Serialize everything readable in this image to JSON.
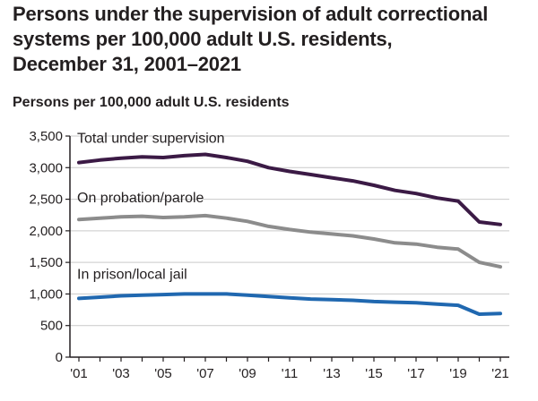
{
  "chart_data": {
    "type": "line",
    "title_lines": [
      "Persons under the supervision of adult correctional",
      "systems per 100,000 adult U.S. residents,",
      "December 31, 2001–2021"
    ],
    "ylabel": "Persons per 100,000 adult U.S. residents",
    "xlabel": "",
    "x": [
      2001,
      2002,
      2003,
      2004,
      2005,
      2006,
      2007,
      2008,
      2009,
      2010,
      2011,
      2012,
      2013,
      2014,
      2015,
      2016,
      2017,
      2018,
      2019,
      2020,
      2021
    ],
    "xtick_values": [
      2001,
      2003,
      2005,
      2007,
      2009,
      2011,
      2013,
      2015,
      2017,
      2019,
      2021
    ],
    "xtick_labels": [
      "'01",
      "'03",
      "'05",
      "'07",
      "'09",
      "'11",
      "'13",
      "'15",
      "'17",
      "'19",
      "'21"
    ],
    "ylim": [
      0,
      3500
    ],
    "yticks": [
      0,
      500,
      1000,
      1500,
      2000,
      2500,
      3000,
      3500
    ],
    "ytick_labels": [
      "0",
      "500",
      "1,000",
      "1,500",
      "2,000",
      "2,500",
      "3,000",
      "3,500"
    ],
    "grid": "horizontal",
    "series": [
      {
        "name": "Total under supervision",
        "color": "#3b1a45",
        "values": [
          3080,
          3120,
          3150,
          3170,
          3160,
          3190,
          3210,
          3160,
          3100,
          3000,
          2940,
          2890,
          2840,
          2790,
          2720,
          2640,
          2590,
          2520,
          2470,
          2140,
          2100
        ]
      },
      {
        "name": "On probation/parole",
        "color": "#8c8c8c",
        "values": [
          2180,
          2200,
          2220,
          2230,
          2210,
          2220,
          2240,
          2200,
          2150,
          2070,
          2020,
          1980,
          1950,
          1920,
          1870,
          1810,
          1790,
          1740,
          1710,
          1500,
          1430
        ]
      },
      {
        "name": "In prison/local jail",
        "color": "#2068b0",
        "values": [
          930,
          950,
          970,
          980,
          990,
          1000,
          1000,
          1000,
          980,
          960,
          940,
          920,
          910,
          900,
          880,
          870,
          860,
          840,
          820,
          680,
          690
        ]
      }
    ]
  }
}
